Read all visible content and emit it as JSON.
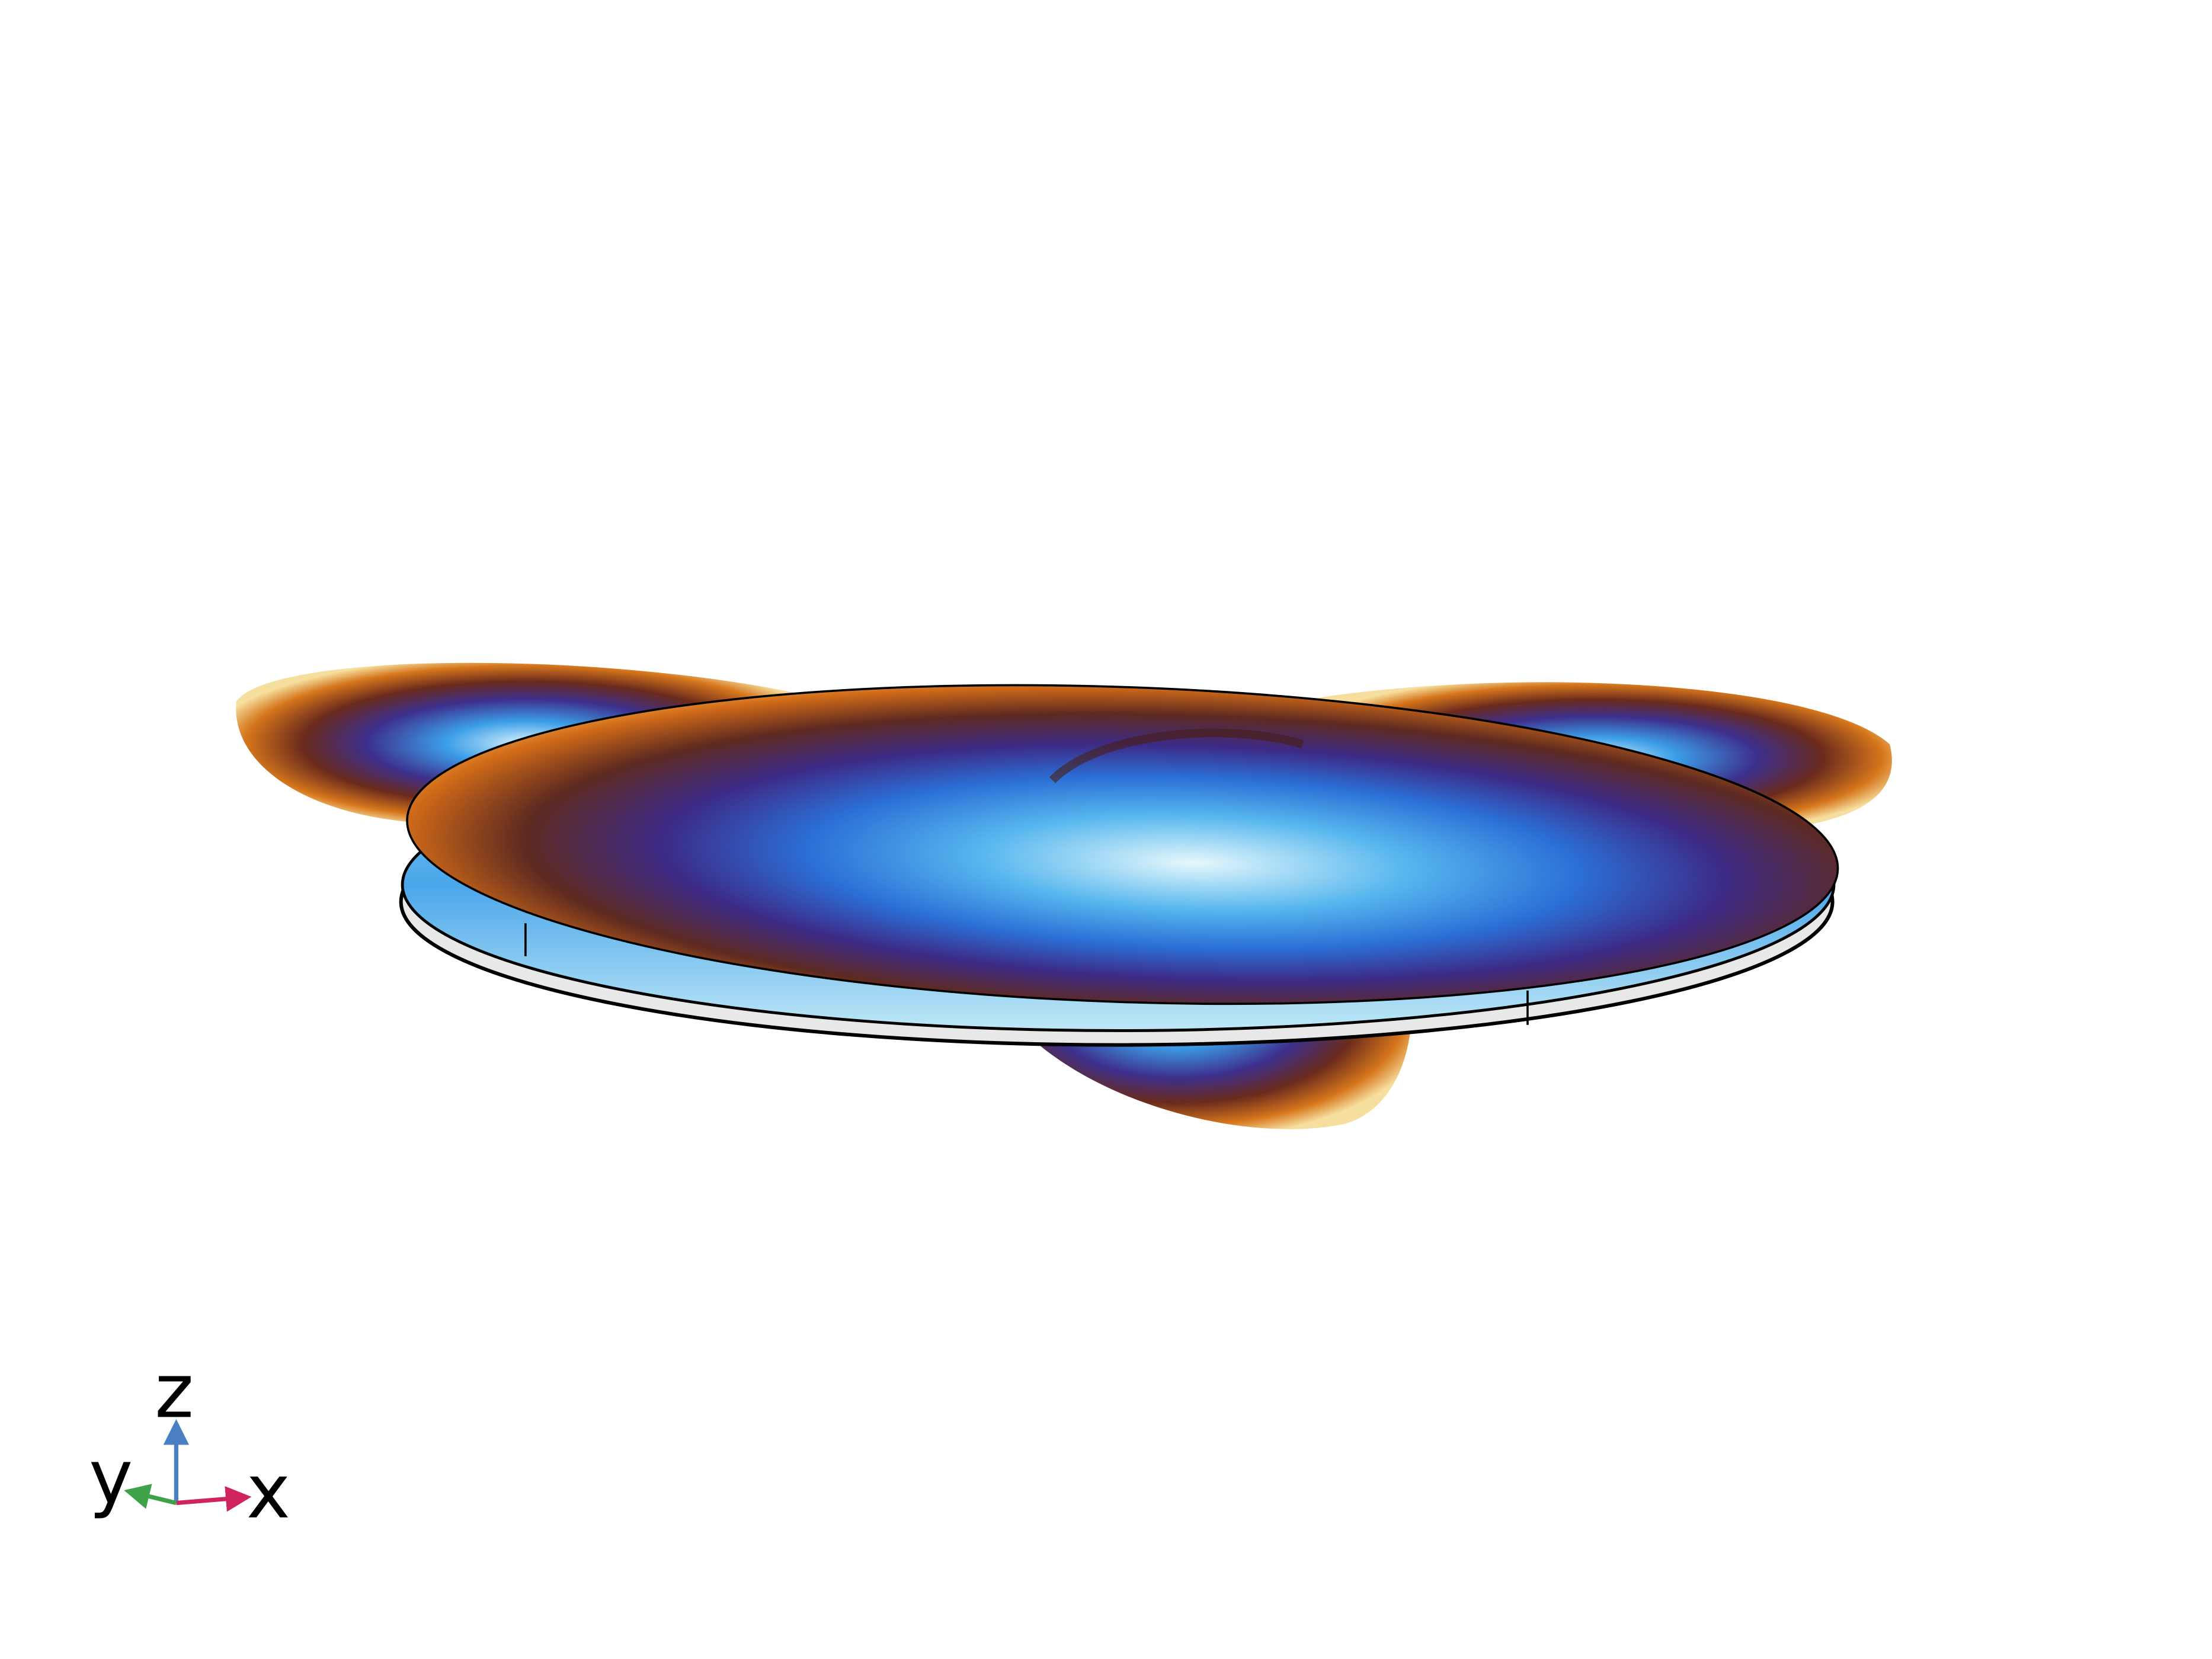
{
  "axes": {
    "z": "z",
    "y": "y",
    "x": "x"
  }
}
